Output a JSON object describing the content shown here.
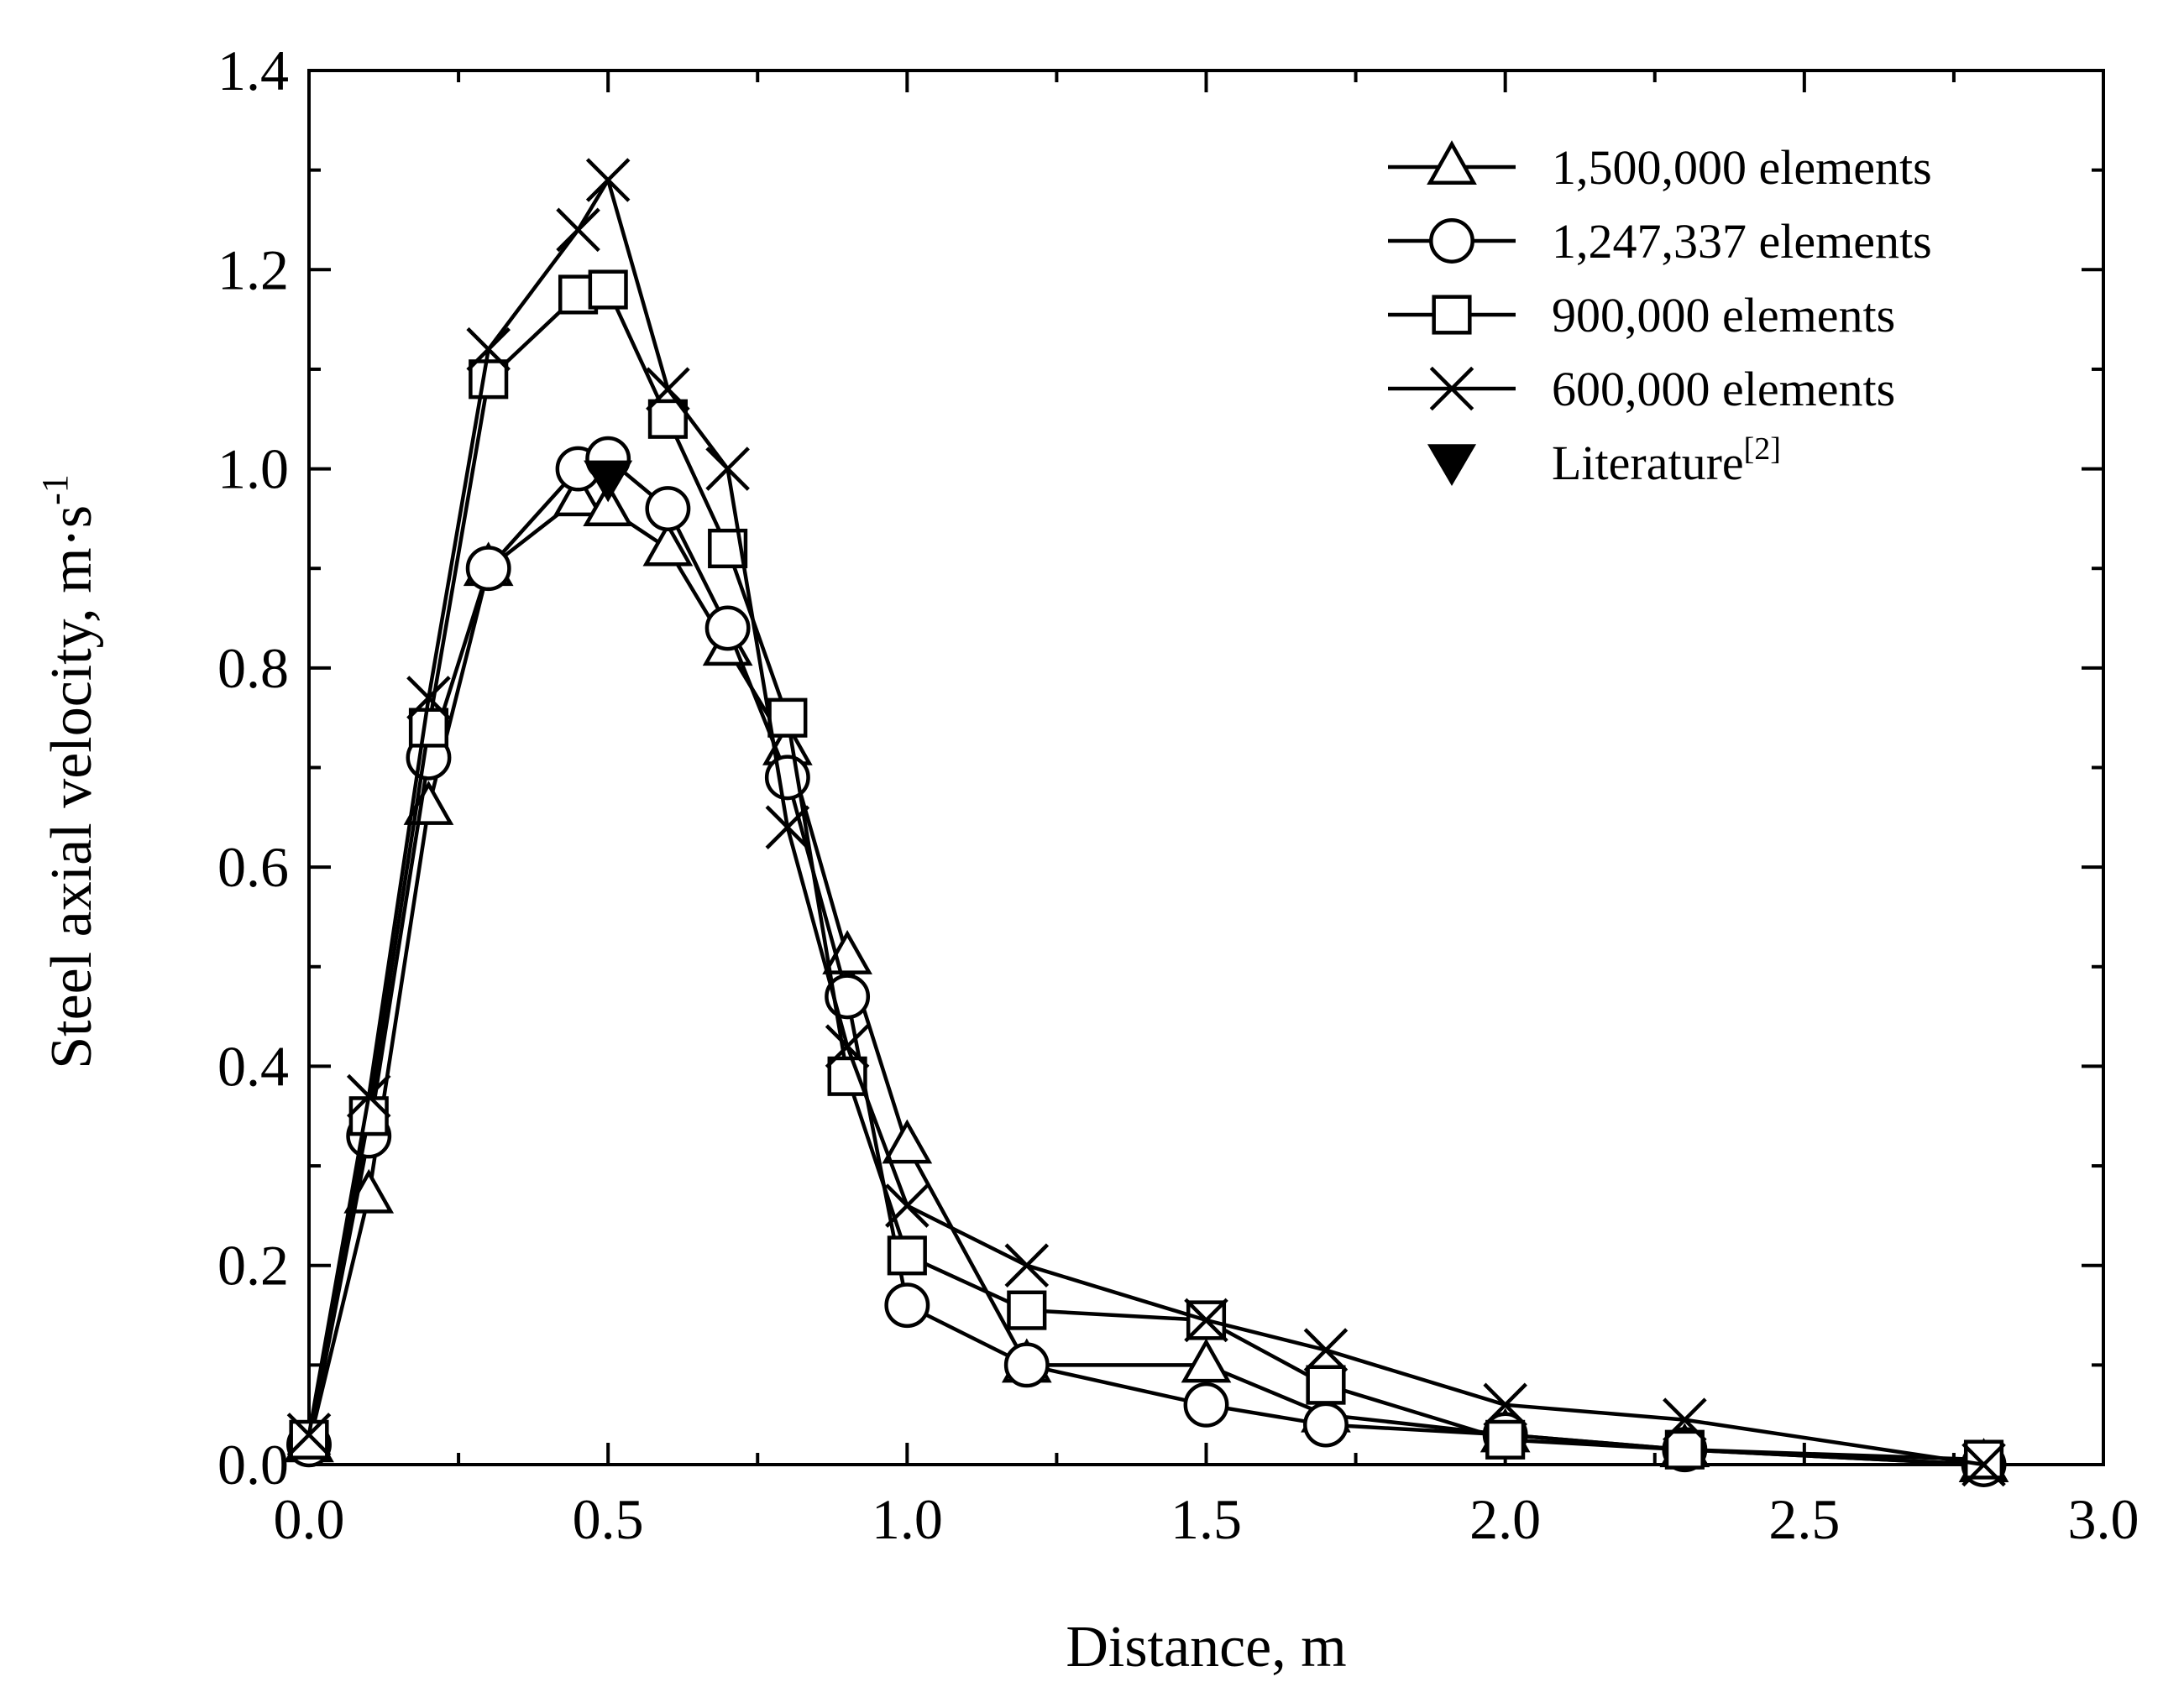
{
  "chart_data": {
    "type": "line",
    "title": "",
    "xlabel": "Distance, m",
    "ylabel_main": "Steel axial velocity, m·s",
    "ylabel_superscript": "-1",
    "xlim": [
      0.0,
      3.0
    ],
    "ylim": [
      0.0,
      1.4
    ],
    "x_ticks": [
      "0.0",
      "0.5",
      "1.0",
      "1.5",
      "2.0",
      "2.5",
      "3.0"
    ],
    "y_ticks": [
      "0.0",
      "0.2",
      "0.4",
      "0.6",
      "0.8",
      "1.0",
      "1.2",
      "1.4"
    ],
    "grid": false,
    "legend_position": "top-right",
    "series": [
      {
        "name": "1,500,000 elements",
        "marker": "triangle-up-open",
        "x": [
          0.0,
          0.1,
          0.2,
          0.3,
          0.45,
          0.5,
          0.6,
          0.7,
          0.8,
          0.9,
          1.0,
          1.2,
          1.5,
          1.7,
          2.0,
          2.3,
          2.8
        ],
        "y": [
          0.02,
          0.27,
          0.66,
          0.9,
          0.97,
          0.96,
          0.92,
          0.82,
          0.72,
          0.51,
          0.32,
          0.1,
          0.1,
          0.05,
          0.03,
          0.015,
          0.0
        ]
      },
      {
        "name": "1,247,337 elements",
        "marker": "circle-open",
        "x": [
          0.0,
          0.1,
          0.2,
          0.3,
          0.45,
          0.5,
          0.6,
          0.7,
          0.8,
          0.9,
          1.0,
          1.2,
          1.5,
          1.7,
          2.0,
          2.3,
          2.8
        ],
        "y": [
          0.02,
          0.33,
          0.71,
          0.9,
          1.0,
          1.01,
          0.96,
          0.84,
          0.69,
          0.47,
          0.16,
          0.1,
          0.06,
          0.04,
          0.03,
          0.015,
          0.0
        ]
      },
      {
        "name": "900,000 elements",
        "marker": "square-open",
        "x": [
          0.0,
          0.1,
          0.2,
          0.3,
          0.45,
          0.5,
          0.6,
          0.7,
          0.8,
          0.9,
          1.0,
          1.2,
          1.5,
          1.7,
          2.0,
          2.3,
          2.8
        ],
        "y": [
          0.025,
          0.35,
          0.74,
          1.09,
          1.175,
          1.18,
          1.05,
          0.92,
          0.75,
          0.39,
          0.21,
          0.155,
          0.145,
          0.08,
          0.025,
          0.015,
          0.005
        ]
      },
      {
        "name": "600,000 elements",
        "marker": "x",
        "x": [
          0.0,
          0.1,
          0.2,
          0.3,
          0.45,
          0.5,
          0.6,
          0.7,
          0.8,
          0.9,
          1.0,
          1.2,
          1.5,
          1.7,
          2.0,
          2.3,
          2.8
        ],
        "y": [
          0.03,
          0.37,
          0.77,
          1.12,
          1.24,
          1.29,
          1.08,
          1.0,
          0.64,
          0.42,
          0.26,
          0.2,
          0.145,
          0.115,
          0.06,
          0.045,
          0.0
        ]
      },
      {
        "name": "Literature",
        "name_superscript": "[2]",
        "marker": "triangle-down-filled",
        "x": [
          0.5
        ],
        "y": [
          0.99
        ]
      }
    ]
  }
}
